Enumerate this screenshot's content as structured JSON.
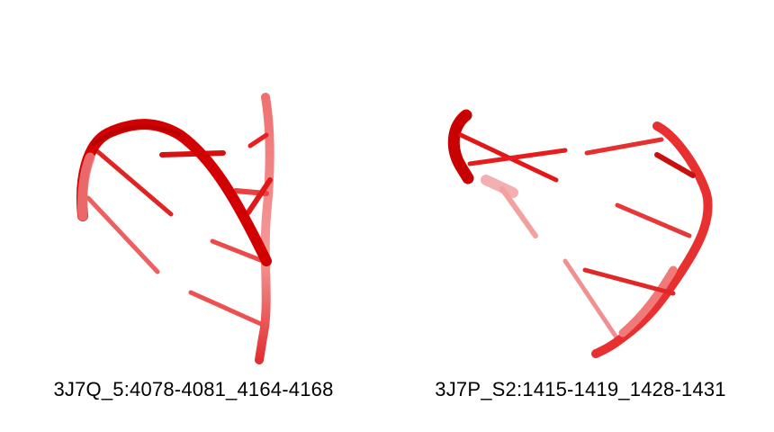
{
  "panels": [
    {
      "caption": "3J7Q_5:4078-4081_4164-4168",
      "depicts": "rna-3d-structure"
    },
    {
      "caption": "3J7P_S2:1415-1419_1428-1431",
      "depicts": "rna-3d-structure"
    }
  ],
  "colors": {
    "backbone_dark": "#d40000",
    "backbone_mid": "#e82020",
    "backbone_light": "#f06a6a",
    "background": "#ffffff"
  }
}
